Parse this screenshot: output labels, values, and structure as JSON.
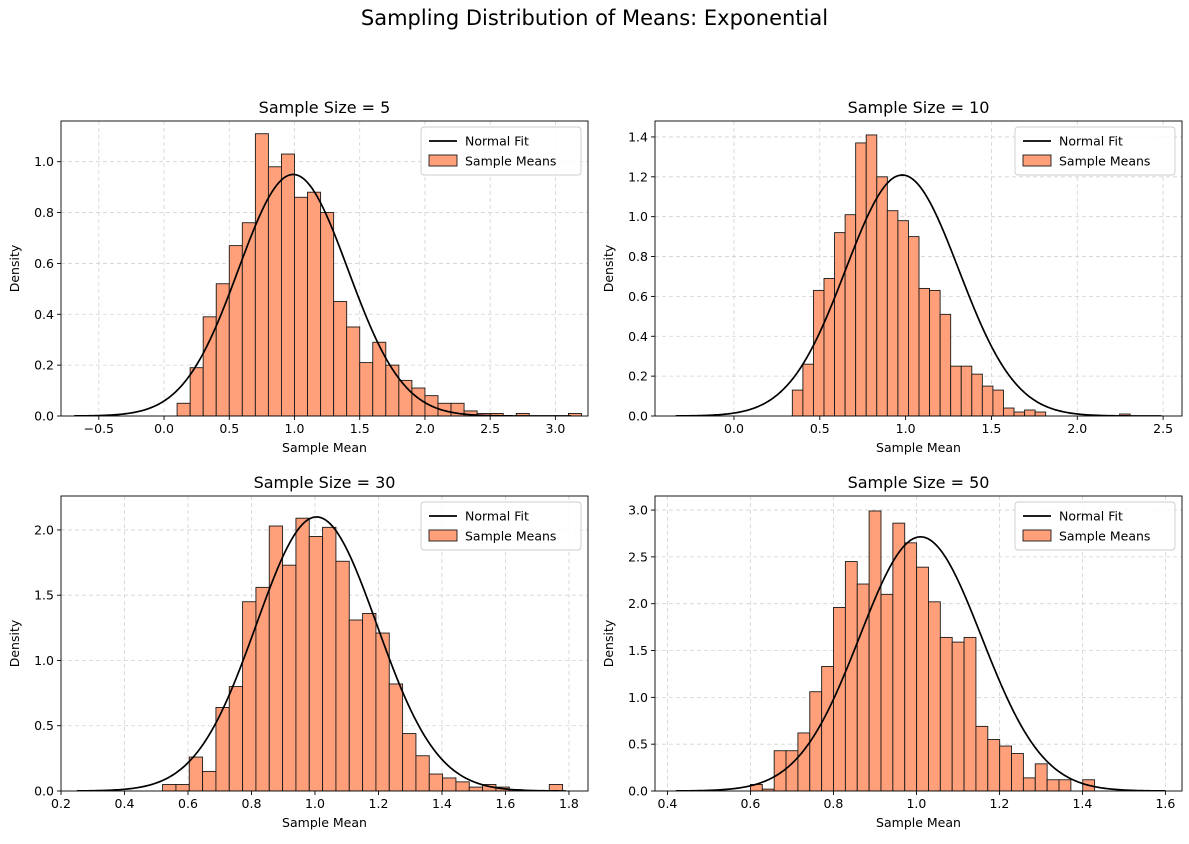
{
  "figure": {
    "title": "Sampling Distribution of Means: Exponential"
  },
  "style": {
    "bar_fill": "#FFA07A",
    "bar_edge": "#1a1a1a",
    "curve_color": "#000000",
    "grid_color": "#d3d3d3",
    "legend_border": "#cccccc"
  },
  "chart_data": [
    {
      "type": "bar",
      "title": "Sample Size = 5",
      "xlabel": "Sample Mean",
      "ylabel": "Density",
      "xlim": [
        -0.79,
        3.25
      ],
      "ylim": [
        0,
        1.16
      ],
      "xticks": [
        -0.5,
        0.0,
        0.5,
        1.0,
        1.5,
        2.0,
        2.5,
        3.0
      ],
      "xtick_labels": [
        "−0.5",
        "0.0",
        "0.5",
        "1.0",
        "1.5",
        "2.0",
        "2.5",
        "3.0"
      ],
      "yticks": [
        0.0,
        0.2,
        0.4,
        0.6,
        0.8,
        1.0
      ],
      "ytick_labels": [
        "0.0",
        "0.2",
        "0.4",
        "0.6",
        "0.8",
        "1.0"
      ],
      "grid": true,
      "legend": {
        "position": "top-right",
        "entries": [
          "Normal Fit",
          "Sample Means"
        ]
      },
      "histogram": {
        "bin_start": 0.1,
        "bin_width": 0.1,
        "densities": [
          0.05,
          0.19,
          0.39,
          0.52,
          0.67,
          0.76,
          1.11,
          0.98,
          1.03,
          0.86,
          0.88,
          0.8,
          0.45,
          0.35,
          0.21,
          0.29,
          0.2,
          0.14,
          0.11,
          0.08,
          0.05,
          0.05,
          0.02,
          0.01,
          0.01,
          0.0,
          0.01,
          0.0,
          0.0,
          0.0,
          0.01
        ]
      },
      "normal_fit": {
        "mean": 0.99,
        "sd": 0.42,
        "x_range": [
          -0.69,
          3.12
        ]
      }
    },
    {
      "type": "bar",
      "title": "Sample Size = 10",
      "xlabel": "Sample Mean",
      "ylabel": "Density",
      "xlim": [
        -0.46,
        2.61
      ],
      "ylim": [
        0,
        1.48
      ],
      "xticks": [
        0.0,
        0.5,
        1.0,
        1.5,
        2.0,
        2.5
      ],
      "xtick_labels": [
        "0.0",
        "0.5",
        "1.0",
        "1.5",
        "2.0",
        "2.5"
      ],
      "yticks": [
        0.0,
        0.2,
        0.4,
        0.6,
        0.8,
        1.0,
        1.2,
        1.4
      ],
      "ytick_labels": [
        "0.0",
        "0.2",
        "0.4",
        "0.6",
        "0.8",
        "1.0",
        "1.2",
        "1.4"
      ],
      "grid": true,
      "legend": {
        "position": "top-right",
        "entries": [
          "Normal Fit",
          "Sample Means"
        ]
      },
      "histogram": {
        "bin_start": 0.34,
        "bin_width": 0.0615,
        "densities": [
          0.13,
          0.26,
          0.63,
          0.69,
          0.92,
          1.01,
          1.37,
          1.41,
          1.2,
          1.03,
          0.98,
          0.9,
          0.64,
          0.63,
          0.51,
          0.25,
          0.25,
          0.21,
          0.15,
          0.13,
          0.04,
          0.02,
          0.03,
          0.02,
          0.0,
          0.0,
          0.0,
          0.0,
          0.0,
          0.0,
          0.0,
          0.01
        ]
      },
      "normal_fit": {
        "mean": 0.98,
        "sd": 0.33,
        "x_range": [
          -0.34,
          2.49
        ]
      }
    },
    {
      "type": "bar",
      "title": "Sample Size = 30",
      "xlabel": "Sample Mean",
      "ylabel": "Density",
      "xlim": [
        0.2,
        1.86
      ],
      "ylim": [
        0,
        2.26
      ],
      "xticks": [
        0.2,
        0.4,
        0.6,
        0.8,
        1.0,
        1.2,
        1.4,
        1.6,
        1.8
      ],
      "xtick_labels": [
        "0.2",
        "0.4",
        "0.6",
        "0.8",
        "1.0",
        "1.2",
        "1.4",
        "1.6",
        "1.8"
      ],
      "yticks": [
        0.0,
        0.5,
        1.0,
        1.5,
        2.0
      ],
      "ytick_labels": [
        "0.0",
        "0.5",
        "1.0",
        "1.5",
        "2.0"
      ],
      "grid": true,
      "legend": {
        "position": "top-right",
        "entries": [
          "Normal Fit",
          "Sample Means"
        ]
      },
      "histogram": {
        "bin_start": 0.52,
        "bin_width": 0.042,
        "densities": [
          0.05,
          0.05,
          0.26,
          0.15,
          0.64,
          0.8,
          1.45,
          1.56,
          2.03,
          1.73,
          2.09,
          1.95,
          2.02,
          1.76,
          1.31,
          1.36,
          1.21,
          0.82,
          0.44,
          0.27,
          0.13,
          0.1,
          0.07,
          0.03,
          0.05,
          0.03,
          0.01,
          0.0,
          0.0,
          0.05
        ]
      },
      "normal_fit": {
        "mean": 1.005,
        "sd": 0.19,
        "x_range": [
          0.25,
          1.79
        ]
      }
    },
    {
      "type": "bar",
      "title": "Sample Size = 50",
      "xlabel": "Sample Mean",
      "ylabel": "Density",
      "xlim": [
        0.37,
        1.64
      ],
      "ylim": [
        0,
        3.15
      ],
      "xticks": [
        0.4,
        0.6,
        0.8,
        1.0,
        1.2,
        1.4,
        1.6
      ],
      "xtick_labels": [
        "0.4",
        "0.6",
        "0.8",
        "1.0",
        "1.2",
        "1.4",
        "1.6"
      ],
      "yticks": [
        0.0,
        0.5,
        1.0,
        1.5,
        2.0,
        2.5,
        3.0
      ],
      "ytick_labels": [
        "0.0",
        "0.5",
        "1.0",
        "1.5",
        "2.0",
        "2.5",
        "3.0"
      ],
      "grid": true,
      "legend": {
        "position": "top-right",
        "entries": [
          "Normal Fit",
          "Sample Means"
        ]
      },
      "histogram": {
        "bin_start": 0.6,
        "bin_width": 0.0286,
        "densities": [
          0.07,
          0.02,
          0.43,
          0.43,
          0.62,
          1.06,
          1.33,
          1.96,
          2.45,
          2.21,
          2.99,
          2.1,
          2.86,
          2.65,
          2.39,
          2.02,
          1.64,
          1.59,
          1.64,
          0.69,
          0.55,
          0.48,
          0.4,
          0.14,
          0.29,
          0.12,
          0.12,
          0.0,
          0.12
        ]
      },
      "normal_fit": {
        "mean": 1.01,
        "sd": 0.147,
        "x_range": [
          0.42,
          1.6
        ]
      }
    }
  ]
}
